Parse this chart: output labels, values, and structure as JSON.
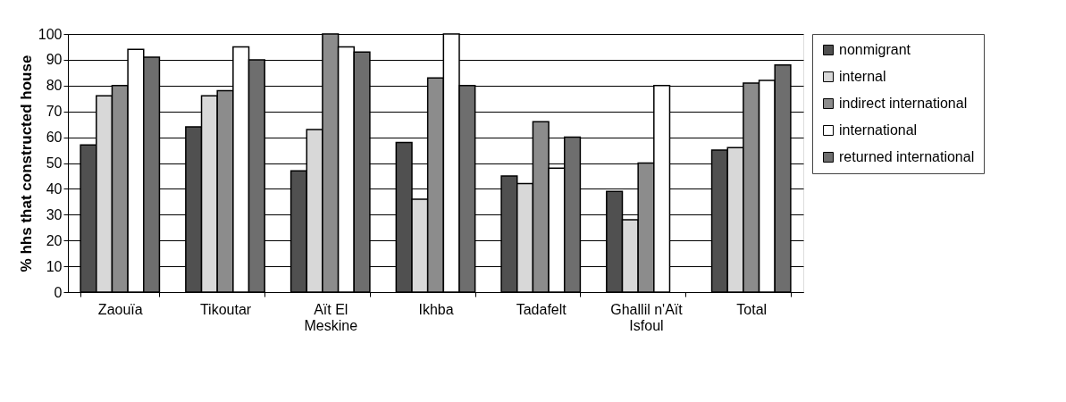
{
  "chart_data": {
    "type": "bar",
    "ylabel": "% hhs that constructed house",
    "categories": [
      "Zaouïa",
      "Tikoutar",
      "Aït El Meskine",
      "Ikhba",
      "Tadafelt",
      "Ghallil n'Aït Isfoul",
      "Total"
    ],
    "series": [
      {
        "name": "nonmigrant",
        "color": "#505050",
        "values": [
          57,
          64,
          47,
          58,
          45,
          39,
          55
        ]
      },
      {
        "name": "internal",
        "color": "#d8d8d8",
        "values": [
          76,
          76,
          63,
          36,
          42,
          28,
          56
        ]
      },
      {
        "name": "indirect international",
        "color": "#8c8c8c",
        "values": [
          80,
          78,
          100,
          83,
          66,
          50,
          81
        ]
      },
      {
        "name": "international",
        "color": "#ffffff",
        "values": [
          94,
          95,
          95,
          100,
          48,
          80,
          82
        ]
      },
      {
        "name": "returned international",
        "color": "#6e6e6e",
        "values": [
          91,
          90,
          93,
          80,
          60,
          null,
          88
        ]
      }
    ],
    "ylim": [
      0,
      100
    ],
    "yticks": [
      0,
      10,
      20,
      30,
      40,
      50,
      60,
      70,
      80,
      90,
      100
    ],
    "grid": "y",
    "legend": "right"
  }
}
